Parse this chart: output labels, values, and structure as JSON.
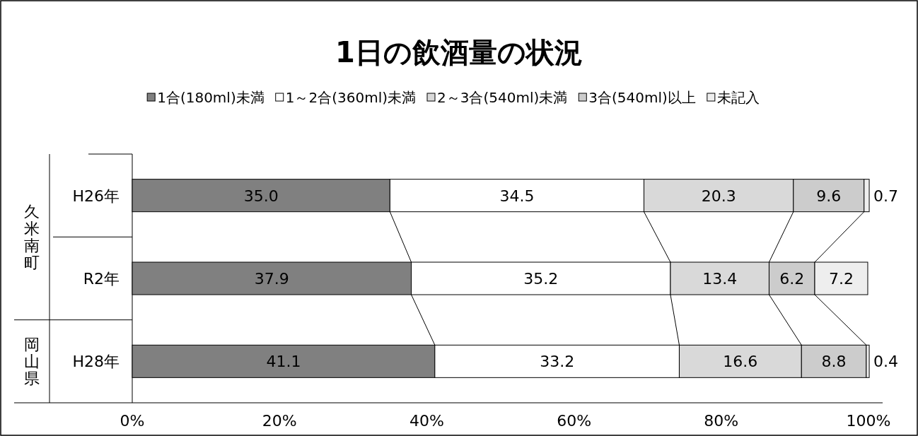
{
  "chart_data": {
    "type": "bar",
    "orientation": "horizontal",
    "stacked": true,
    "title": "1日の飲酒量の状況",
    "categories": [
      "H26年",
      "R2年",
      "H28年"
    ],
    "series": [
      {
        "name": "1合(180ml)未満",
        "color": "#808080",
        "values": [
          35.0,
          37.9,
          41.1
        ],
        "value_labels": [
          "35.0",
          "37.9",
          "41.1"
        ]
      },
      {
        "name": "1～2合(360ml)未満",
        "color": "#ffffff",
        "values": [
          34.5,
          35.2,
          33.2
        ],
        "value_labels": [
          "34.5",
          "35.2",
          "33.2"
        ]
      },
      {
        "name": "2～3合(540ml)未満",
        "color": "#d9d9d9",
        "values": [
          20.3,
          13.4,
          16.6
        ],
        "value_labels": [
          "20.3",
          "13.4",
          "16.6"
        ]
      },
      {
        "name": "3合(540ml)以上",
        "color": "#cccccc",
        "values": [
          9.6,
          6.2,
          8.8
        ],
        "value_labels": [
          "9.6",
          "6.2",
          "8.8"
        ]
      },
      {
        "name": "未記入",
        "color": "#eeeeee",
        "values": [
          0.7,
          7.2,
          0.4
        ],
        "value_labels": [
          "0.7",
          "7.2",
          "0.4"
        ]
      }
    ],
    "xlim": [
      0,
      100
    ],
    "xticks": [
      {
        "value": 0,
        "label": "0%"
      },
      {
        "value": 20,
        "label": "20%"
      },
      {
        "value": 40,
        "label": "40%"
      },
      {
        "value": 60,
        "label": "60%"
      },
      {
        "value": 80,
        "label": "80%"
      },
      {
        "value": 100,
        "label": "100%"
      }
    ],
    "legend": "top",
    "annotations": [
      "久米南町",
      "岡山県"
    ]
  }
}
